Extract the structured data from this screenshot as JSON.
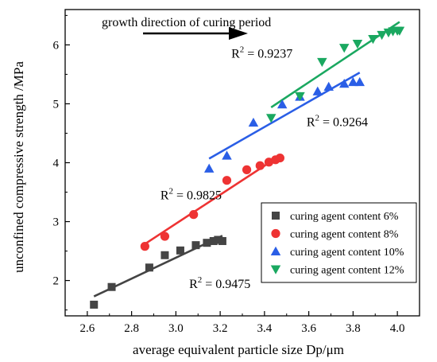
{
  "chart_data": {
    "type": "scatter",
    "xlabel": "average equivalent particle size Dp/μm",
    "ylabel": "unconfined compressive strength /MPa",
    "xlim": [
      2.5,
      4.1
    ],
    "ylim": [
      1.4,
      6.6
    ],
    "xticks": [
      2.6,
      2.8,
      3.0,
      3.2,
      3.4,
      3.6,
      3.8,
      4.0
    ],
    "xtick_labels": [
      "2.6",
      "2.8",
      "3.0",
      "3.2",
      "3.4",
      "3.6",
      "3.8",
      "4.0"
    ],
    "yticks": [
      2,
      3,
      4,
      5,
      6
    ],
    "ytick_labels": [
      "2",
      "3",
      "4",
      "5",
      "6"
    ],
    "grid": false,
    "legend_position": "bottom-right",
    "arrow_annotation": "growth direction of curing period",
    "series": [
      {
        "name": "curing agent content 6%",
        "marker": "square",
        "color": "#444444",
        "x": [
          2.63,
          2.71,
          2.88,
          2.95,
          3.02,
          3.09,
          3.14,
          3.17,
          3.19,
          3.21
        ],
        "y": [
          1.59,
          1.89,
          2.22,
          2.43,
          2.51,
          2.6,
          2.64,
          2.67,
          2.69,
          2.67
        ],
        "fit_x": [
          2.63,
          3.21
        ],
        "fit_y": [
          1.73,
          2.76
        ],
        "r2_text": "= 0.9475",
        "r2_x": 3.06,
        "r2_y": 1.87
      },
      {
        "name": "curing agent content 8%",
        "marker": "circle",
        "color": "#ee3333",
        "x": [
          2.86,
          2.95,
          3.08,
          3.23,
          3.32,
          3.38,
          3.42,
          3.45,
          3.47
        ],
        "y": [
          2.58,
          2.75,
          3.12,
          3.7,
          3.88,
          3.95,
          4.01,
          4.05,
          4.08
        ],
        "fit_x": [
          2.86,
          3.47
        ],
        "fit_y": [
          2.62,
          4.12
        ],
        "r2_text": "= 0.9825",
        "r2_x": 2.93,
        "r2_y": 3.38
      },
      {
        "name": "curing agent content 10%",
        "marker": "triangle-up",
        "color": "#2a5ee6",
        "x": [
          3.15,
          3.23,
          3.35,
          3.48,
          3.56,
          3.64,
          3.69,
          3.76,
          3.8,
          3.83
        ],
        "y": [
          3.9,
          4.12,
          4.68,
          4.99,
          5.12,
          5.21,
          5.29,
          5.34,
          5.37,
          5.37
        ],
        "fit_x": [
          3.15,
          3.83
        ],
        "fit_y": [
          4.07,
          5.53
        ],
        "r2_text": "= 0.9264",
        "r2_x": 3.59,
        "r2_y": 4.62
      },
      {
        "name": "curing agent content 12%",
        "marker": "triangle-down",
        "color": "#1aa860",
        "x": [
          3.43,
          3.56,
          3.66,
          3.76,
          3.82,
          3.89,
          3.93,
          3.96,
          3.98,
          4.0,
          4.01
        ],
        "y": [
          4.76,
          5.13,
          5.71,
          5.95,
          6.02,
          6.1,
          6.17,
          6.21,
          6.23,
          6.24,
          6.24
        ],
        "fit_x": [
          3.43,
          4.01
        ],
        "fit_y": [
          4.94,
          6.39
        ],
        "r2_text": "= 0.9237",
        "r2_x": 3.25,
        "r2_y": 5.78
      }
    ]
  }
}
